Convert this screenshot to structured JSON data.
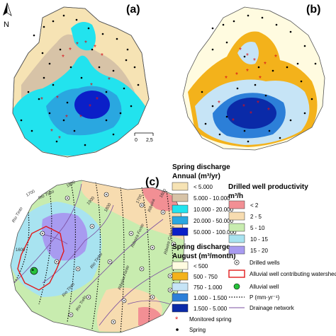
{
  "panels": [
    {
      "id": "a",
      "label": "(a)"
    },
    {
      "id": "b",
      "label": "(b)"
    },
    {
      "id": "c",
      "label": "(c)"
    }
  ],
  "north_arrow": {
    "label": "N"
  },
  "scale_bar": {
    "start": "0",
    "end": "2,5"
  },
  "legend_annual": {
    "title": "Spring discharge",
    "subtitle": "Annual (m³/yr)",
    "classes": [
      {
        "label": "< 5.000",
        "color": "#f6e3b4"
      },
      {
        "label": "5.000 - 10.000",
        "color": "#d7c3a7"
      },
      {
        "label": "10.000 - 20.000",
        "color": "#22e3ee"
      },
      {
        "label": "20.000 - 50.000",
        "color": "#2aa7e0"
      },
      {
        "label": "50.000 - 100.000",
        "color": "#0b1fc8"
      }
    ]
  },
  "legend_august": {
    "title": "Spring discharge",
    "subtitle": "August (m³/month)",
    "classes": [
      {
        "label": "< 500",
        "color": "#fffbe0"
      },
      {
        "label": "500 - 750",
        "color": "#f3b21b"
      },
      {
        "label": "750 - 1.000",
        "color": "#c6e4f6"
      },
      {
        "label": "1.000 - 1.500",
        "color": "#2c7fd8"
      },
      {
        "label": "1.500 - 5.000",
        "color": "#0a2aa8"
      }
    ],
    "symbols": [
      {
        "label": "Monitored spring"
      },
      {
        "label": "Spring"
      }
    ]
  },
  "legend_wells": {
    "title": "Drilled well productivity",
    "unit": "m³/h",
    "classes": [
      {
        "label": "< 2",
        "color": "#f28f94"
      },
      {
        "label": "2 - 5",
        "color": "#f7dcb0"
      },
      {
        "label": "5 - 10",
        "color": "#c8ecaf"
      },
      {
        "label": "10 - 15",
        "color": "#a8e3f0"
      },
      {
        "label": "15 - 20",
        "color": "#a89bf0"
      }
    ],
    "symbols": [
      {
        "label": "Drilled wells"
      },
      {
        "label": "Alluvial well contributing watershed"
      },
      {
        "label": "Alluvial well"
      },
      {
        "label": "P (mm·yr⁻¹)"
      },
      {
        "label": "Drainage network"
      }
    ]
  },
  "map_c_labels": {
    "rivers": [
      "Rio Tinto",
      "Rio Tinto",
      "Rio Tinto",
      "Ribeira",
      "Ribeira Fonte",
      "Ribeira Cabeça",
      "Rio Tinho",
      "Ribeira Fonte",
      "Rio Trelo"
    ],
    "isohyets": [
      "1600",
      "1700",
      "1800",
      "1900",
      "1800",
      "1700",
      "1600"
    ]
  }
}
